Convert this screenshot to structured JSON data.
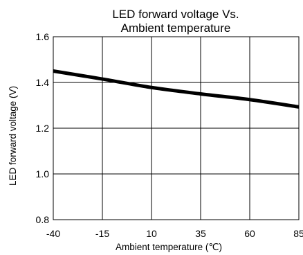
{
  "chart_data": {
    "type": "line",
    "title_lines": [
      "LED forward voltage Vs.",
      "Ambient temperature"
    ],
    "xlabel": "Ambient temperature (℃)",
    "ylabel": "LED forward voltage (V)",
    "xlim": [
      -40,
      85
    ],
    "ylim": [
      0.8,
      1.6
    ],
    "x_ticks": [
      -40,
      -15,
      10,
      35,
      60,
      85
    ],
    "x_tick_labels": [
      "-40",
      "-15",
      "10",
      "35",
      "60",
      "85"
    ],
    "y_ticks": [
      0.8,
      1.0,
      1.2,
      1.4,
      1.6
    ],
    "y_tick_labels": [
      "0.8",
      "1.0",
      "1.2",
      "1.4",
      "1.6"
    ],
    "grid": true,
    "series": [
      {
        "x": [
          -40,
          -15,
          10,
          35,
          60,
          85
        ],
        "y": [
          1.45,
          1.415,
          1.378,
          1.35,
          1.325,
          1.293
        ],
        "color": "#000000"
      }
    ]
  }
}
